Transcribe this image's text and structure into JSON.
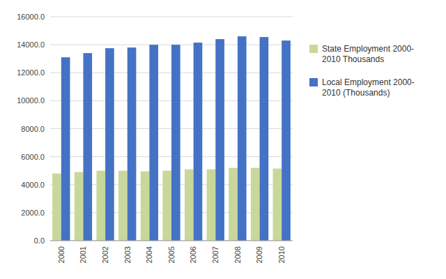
{
  "chart_data": {
    "type": "bar",
    "categories": [
      "2000",
      "2001",
      "2002",
      "2003",
      "2004",
      "2005",
      "2006",
      "2007",
      "2008",
      "2009",
      "2010"
    ],
    "series": [
      {
        "name": "State Employment 2000-\n2010 Thousands",
        "color": "#c8d89b",
        "values": [
          4800,
          4900,
          5000,
          5000,
          4950,
          5000,
          5100,
          5100,
          5200,
          5200,
          5150
        ]
      },
      {
        "name": "Local Employment 2000-\n2010 (Thousands)",
        "color": "#4472c4",
        "values": [
          13100,
          13400,
          13750,
          13800,
          14000,
          14000,
          14150,
          14400,
          14600,
          14550,
          14300
        ]
      }
    ],
    "ylim": [
      0,
      16000
    ],
    "yticks": [
      {
        "value": 0,
        "label": "0.0"
      },
      {
        "value": 2000,
        "label": "2000.0"
      },
      {
        "value": 4000,
        "label": "4000.0"
      },
      {
        "value": 6000,
        "label": "6000.0"
      },
      {
        "value": 8000,
        "label": "8000.0"
      },
      {
        "value": 10000,
        "label": "10000.0"
      },
      {
        "value": 12000,
        "label": "12000.0"
      },
      {
        "value": 14000,
        "label": "14000.0"
      },
      {
        "value": 16000,
        "label": "16000.0"
      }
    ],
    "grid": true,
    "legend": "right"
  }
}
